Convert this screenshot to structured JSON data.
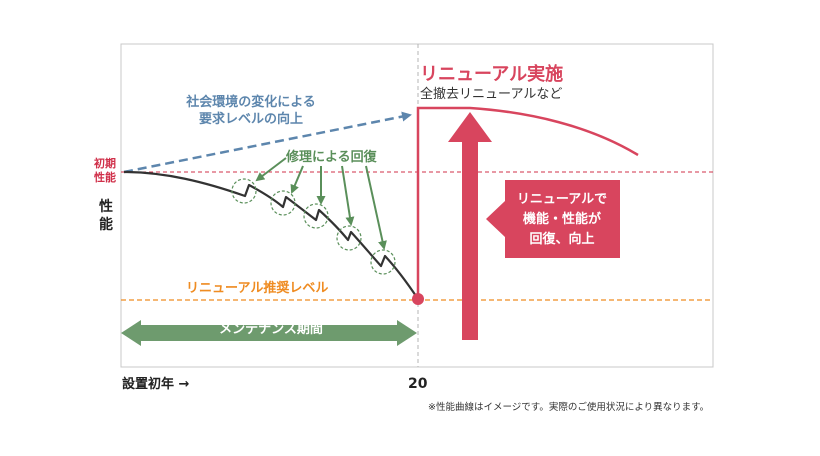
{
  "diagram": {
    "initial_performance": "初期\n性能",
    "y_axis_label": "性能",
    "social_change": "社会環境の変化による\n要求レベルの向上",
    "repair_recovery": "修理による回復",
    "renewal_recommended_level": "リニューアル推奨レベル",
    "maintenance_period": "メンテナンス期間",
    "renewal_title": "リニューアル実施",
    "renewal_subtitle": "全撤去リニューアルなど",
    "renewal_callout": "リニューアルで\n機能・性能が\n回復、向上",
    "x_axis_start": "設置初年 →",
    "x_axis_year": "20",
    "footnote": "※性能曲線はイメージです。実際のご使用状況により異なります。"
  },
  "colors": {
    "performance_curve": "#333333",
    "renewal": "#d8455e",
    "requirement": "#5d86ad",
    "repair": "#5a8f5a",
    "recommended_level": "#ef8c22",
    "initial_level": "#d0304a"
  }
}
